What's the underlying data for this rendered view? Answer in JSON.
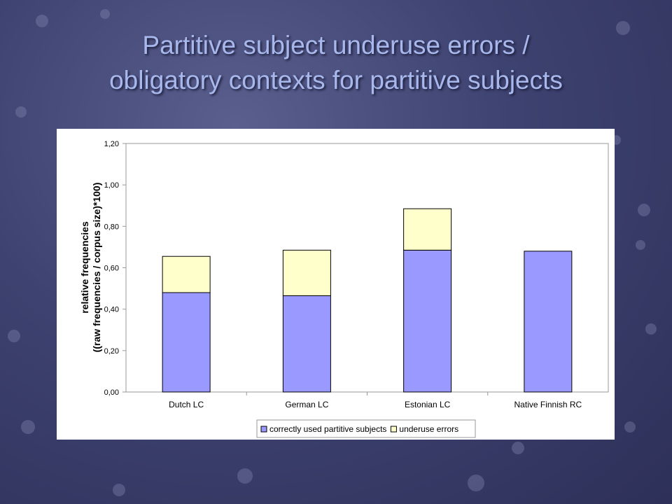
{
  "slide": {
    "title_line1": "Partitive subject underuse errors /",
    "title_line2": "obligatory contexts for partitive subjects"
  },
  "colors": {
    "correct": "#9999ff",
    "underuse": "#ffffcc",
    "title": "#a8b8ec"
  },
  "chart_data": {
    "type": "bar",
    "stacked": true,
    "categories": [
      "Dutch LC",
      "German LC",
      "Estonian LC",
      "Native Finnish RC"
    ],
    "series": [
      {
        "name": "correctly used partitive subjects",
        "values": [
          0.48,
          0.465,
          0.685,
          0.68
        ]
      },
      {
        "name": "underuse errors",
        "values": [
          0.175,
          0.22,
          0.2,
          0.0
        ]
      }
    ],
    "ylabel_line1": "relative frequencies",
    "ylabel_line2": "((raw frequencies / corpus size)*100)",
    "xlabel": "",
    "ylim": [
      0,
      1.2
    ],
    "yticks": [
      "0,00",
      "0,20",
      "0,40",
      "0,60",
      "0,80",
      "1,00",
      "1,20"
    ],
    "grid": false,
    "legend_position": "bottom"
  }
}
